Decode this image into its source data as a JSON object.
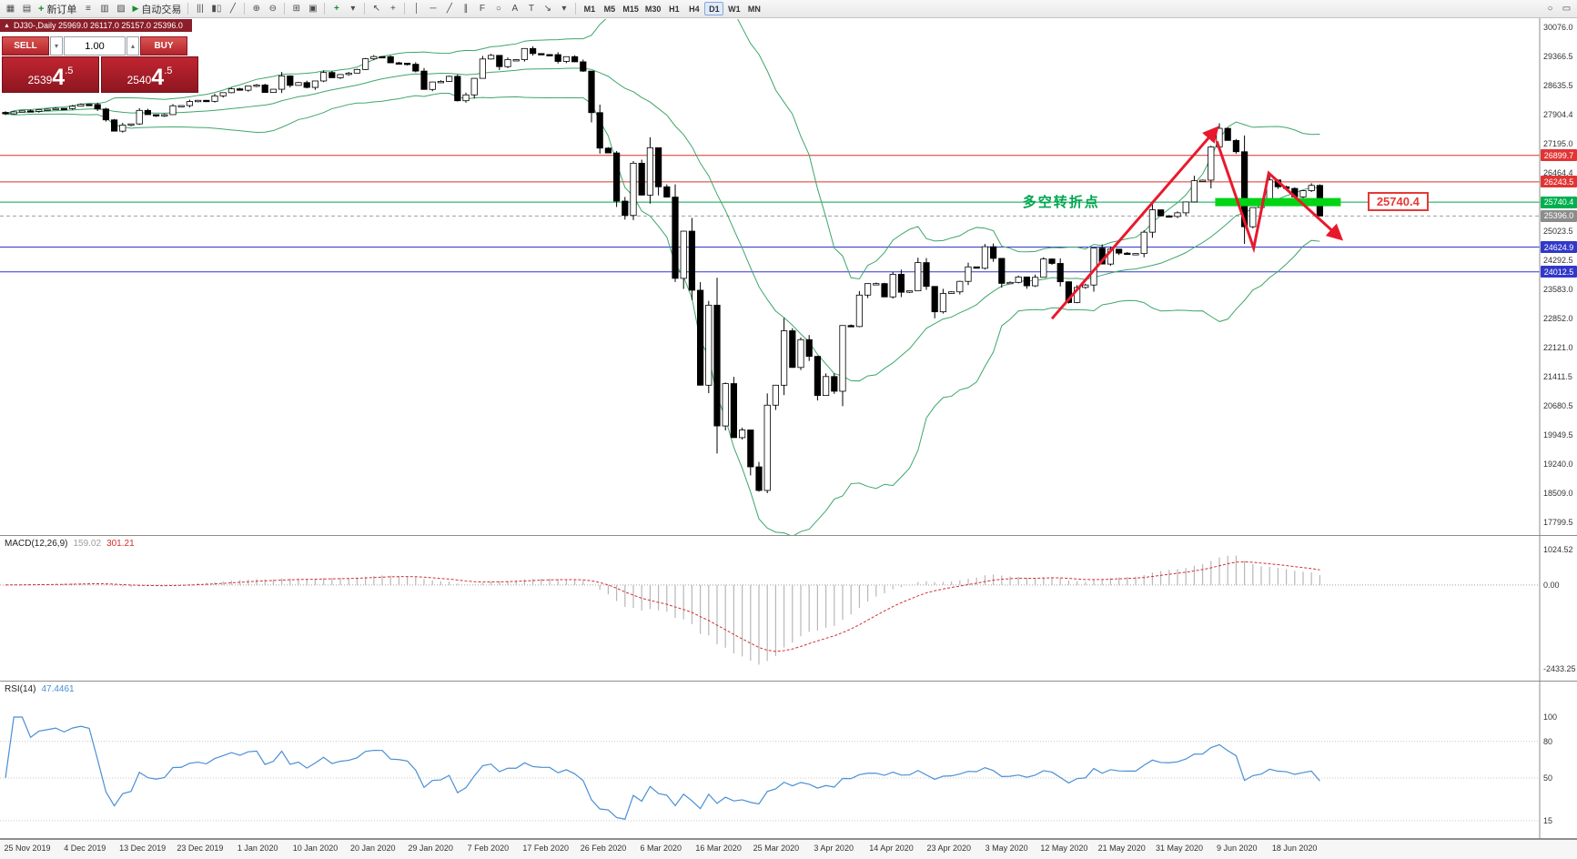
{
  "toolbar": {
    "buttons": {
      "new_order": "新订单",
      "auto_trading": "自动交易"
    },
    "timeframes": [
      "M1",
      "M5",
      "M15",
      "M30",
      "H1",
      "H4",
      "D1",
      "W1",
      "MN"
    ],
    "active_timeframe": "D1"
  },
  "icons": {
    "new_chart": "▦",
    "profiles": "▤",
    "market_watch": "≡",
    "data_window": "▥",
    "navigator": "▨",
    "new_order_plus": "+",
    "autoplay": "▶",
    "bars": "|||",
    "candles": "▮▯",
    "line_chart": "╱",
    "zoom_in": "⊕",
    "zoom_out": "⊖",
    "tile_windows": "⊞",
    "cascade": "▣",
    "indicators": "+",
    "dropdown": "▾",
    "cursor": "↖",
    "crosshair": "+",
    "vline": "│",
    "hline": "─",
    "trendline": "╱",
    "channel": "∥",
    "fibo": "F",
    "shapes": "○",
    "text": "A",
    "label": "T",
    "arrow_tool": "↘",
    "search": "○",
    "chat": "▭",
    "title_marker": "▲",
    "spin_up": "▴",
    "spin_down": "▾"
  },
  "chart_header": {
    "title": "DJ30-,Daily  25969.0 26117.0 25157.0 25396.0"
  },
  "trade_panel": {
    "sell_label": "SELL",
    "buy_label": "BUY",
    "volume": "1.00",
    "sell_price": "25394.5",
    "buy_price": "25404.5"
  },
  "lines": [
    {
      "price": 26899.7,
      "color": "#d7342f",
      "dashed": false,
      "badge_bg": "#e23434",
      "badge_fg": "#ffffff"
    },
    {
      "price": 26243.5,
      "color": "#d7342f",
      "dashed": false,
      "badge_bg": "#e23434",
      "badge_fg": "#ffffff"
    },
    {
      "price": 25740.4,
      "color": "#00a84f",
      "dashed": false,
      "badge_bg": "#00b050",
      "badge_fg": "#ffffff"
    },
    {
      "price": 25396.0,
      "color": "#9e9e9e",
      "dashed": true,
      "badge_bg": "#8c8c8c",
      "badge_fg": "#ffffff"
    },
    {
      "price": 24624.9,
      "color": "#3138c9",
      "dashed": false,
      "badge_bg": "#3138c9",
      "badge_fg": "#ffffff"
    },
    {
      "price": 24012.5,
      "color": "#3138c9",
      "dashed": false,
      "badge_bg": "#3138c9",
      "badge_fg": "#ffffff"
    }
  ],
  "annotations": {
    "pivot_label": "多空转折点",
    "pivot_color": "#00a651",
    "pivot_anchor": {
      "bar": 121.5,
      "price": 25800
    },
    "price_tag": "25740.4",
    "price_tag_anchor": {
      "bar": 162.7,
      "price": 25740.4
    },
    "zone": {
      "bar_start": 144.5,
      "bar_end": 159.5,
      "price": 25740.4,
      "color": "#00d415"
    },
    "arrow_color": "#e8192c",
    "arrow_up": [
      [
        125,
        22850
      ],
      [
        144.7,
        27570
      ]
    ],
    "arrow_zigzag": [
      [
        144.7,
        27250
      ],
      [
        149.1,
        24600
      ],
      [
        150.9,
        26460
      ],
      [
        159.5,
        24840
      ]
    ]
  },
  "macd_panel": {
    "label": "MACD(12,26,9)",
    "value_main": "159.02",
    "value_signal": "301.21",
    "axis_values": [
      1024.52,
      0.0,
      -2433.25
    ]
  },
  "rsi_panel": {
    "label": "RSI(14)",
    "value": "47.4461",
    "levels": [
      100,
      80,
      50,
      15
    ]
  },
  "chart_data": {
    "type": "candlestick",
    "symbol": "DJ30-",
    "timeframe": "Daily",
    "ohlc_today": {
      "open": 25969.0,
      "high": 26117.0,
      "low": 25157.0,
      "close": 25396.0
    },
    "ylim": [
      17799.5,
      30076.0
    ],
    "y_tick_labels": [
      "30076.0",
      "29366.5",
      "28635.5",
      "27904.4",
      "27195.0",
      "26464.4",
      "",
      "25023.5",
      "24292.5",
      "23583.0",
      "22852.0",
      "22121.0",
      "21411.5",
      "20680.5",
      "19949.5",
      "19240.0",
      "18509.0",
      "17799.5"
    ],
    "x_tick_labels": [
      "25 Nov 2019",
      "4 Dec 2019",
      "13 Dec 2019",
      "23 Dec 2019",
      "1 Jan 2020",
      "10 Jan 2020",
      "20 Jan 2020",
      "29 Jan 2020",
      "7 Feb 2020",
      "17 Feb 2020",
      "26 Feb 2020",
      "6 Mar 2020",
      "16 Mar 2020",
      "25 Mar 2020",
      "3 Apr 2020",
      "14 Apr 2020",
      "23 Apr 2020",
      "3 May 2020",
      "12 May 2020",
      "21 May 2020",
      "31 May 2020",
      "9 Jun 2020",
      "18 Jun 2020"
    ],
    "closes": [
      27930,
      27980,
      28005,
      27990,
      28030,
      28045,
      28066,
      28060,
      28120,
      28165,
      28160,
      28050,
      27780,
      27500,
      27650,
      27680,
      28015,
      27910,
      27880,
      27910,
      28130,
      28135,
      28235,
      28265,
      28240,
      28375,
      28455,
      28550,
      28515,
      28620,
      28645,
      28460,
      28540,
      28870,
      28635,
      28705,
      28585,
      28745,
      28955,
      28825,
      28905,
      28940,
      29030,
      29295,
      29350,
      29348,
      29195,
      29185,
      29160,
      28990,
      28535,
      28720,
      28735,
      28860,
      28255,
      28400,
      28810,
      29290,
      29380,
      29100,
      29275,
      29275,
      29550,
      29425,
      29400,
      29398,
      29230,
      29348,
      29220,
      28990,
      27960,
      27080,
      26960,
      25765,
      25410,
      26705,
      25915,
      27090,
      26120,
      25865,
      23850,
      25020,
      23555,
      21200,
      23185,
      20190,
      21240,
      19900,
      20090,
      19175,
      18590,
      20705,
      21200,
      22550,
      21640,
      22330,
      21915,
      20945,
      21415,
      21050,
      22680,
      22655,
      23435,
      23720,
      23720,
      23390,
      23950,
      23505,
      23540,
      24240,
      23650,
      23020,
      23475,
      23515,
      23775,
      24135,
      24100,
      24635,
      24345,
      23725,
      23750,
      23885,
      23665,
      23875,
      24330,
      24220,
      23765,
      23250,
      23625,
      23685,
      24600,
      24205,
      24575,
      24475,
      24465,
      24465,
      24995,
      25550,
      25400,
      25385,
      25475,
      25745,
      26270,
      26285,
      27110,
      27570,
      27270,
      26990,
      25130,
      25605,
      25760,
      26290,
      26120,
      26080,
      25870,
      26025,
      26155,
      25396
    ],
    "indicators": {
      "bollinger": {
        "period": 20,
        "deviation": 2,
        "color": "#3fa66a"
      },
      "macd": {
        "fast": 12,
        "slow": 26,
        "signal": 9,
        "histogram_color": "#b8b8b8",
        "signal_color": "#d32f2f"
      },
      "rsi": {
        "period": 14,
        "color": "#4a8fd4"
      }
    }
  }
}
